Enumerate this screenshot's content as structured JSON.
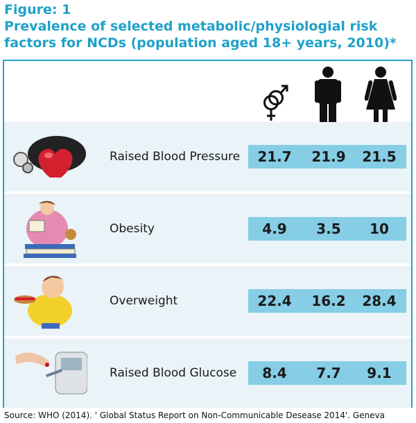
{
  "figure": {
    "label": "Figure: 1",
    "title_line1": "Prevalence of selected metabolic/physiologial risk",
    "title_line2": "factors for NCDs (population aged 18+ years, 2010)*"
  },
  "columns": [
    {
      "icon": "both-sexes-symbol-icon"
    },
    {
      "icon": "male-figure-icon"
    },
    {
      "icon": "female-figure-icon"
    }
  ],
  "chart_data": {
    "type": "table",
    "categories": [
      "Raised Blood Pressure",
      "Obesity",
      "Overweight",
      "Raised Blood Glucose"
    ],
    "series": [
      {
        "values": [
          21.7,
          4.9,
          22.4,
          8.4
        ]
      },
      {
        "values": [
          21.9,
          3.5,
          16.2,
          7.7
        ]
      },
      {
        "values": [
          21.5,
          10,
          28.4,
          9.1
        ]
      }
    ]
  },
  "rows": [
    {
      "label": "Raised Blood Pressure",
      "values": [
        "21.7",
        "21.9",
        "21.5"
      ],
      "icon": "blood-pressure-cuff-heart-icon"
    },
    {
      "label": "Obesity",
      "values": [
        "4.9",
        "3.5",
        "10"
      ],
      "icon": "obese-person-reading-icon"
    },
    {
      "label": "Overweight",
      "values": [
        "22.4",
        "16.2",
        "28.4"
      ],
      "icon": "overweight-man-eating-icon"
    },
    {
      "label": "Raised Blood Glucose",
      "values": [
        "8.4",
        "7.7",
        "9.1"
      ],
      "icon": "glucose-meter-icon"
    }
  ],
  "source": "Source: WHO (2014). ' Global Status Report on Non-Communicable Desease 2014'. Geneva",
  "colors": {
    "accent": "#1fa1c9",
    "bar": "#86cde6",
    "row_bg": "#e9f3f8"
  }
}
